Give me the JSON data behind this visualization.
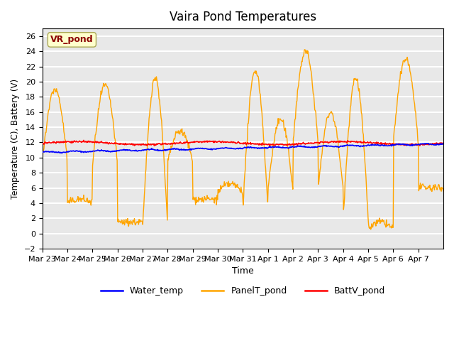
{
  "title": "Vaira Pond Temperatures",
  "xlabel": "Time",
  "ylabel": "Temperature (C), Battery (V)",
  "ylim": [
    -2,
    27
  ],
  "yticks": [
    -2,
    0,
    2,
    4,
    6,
    8,
    10,
    12,
    14,
    16,
    18,
    20,
    22,
    24,
    26
  ],
  "bg_color": "#e8e8e8",
  "grid_color": "white",
  "annotation_text": "VR_pond",
  "annotation_color": "#8b0000",
  "annotation_bg": "#ffffcc",
  "water_temp_color": "blue",
  "panel_temp_color": "orange",
  "batt_color": "red",
  "legend_labels": [
    "Water_temp",
    "PanelT_pond",
    "BattV_pond"
  ],
  "n_days": 16,
  "x_tick_labels": [
    "Mar 23",
    "Mar 24",
    "Mar 25",
    "Mar 26",
    "Mar 27",
    "Mar 28",
    "Mar 29",
    "Mar 30",
    "Mar 31",
    "Apr 1",
    "Apr 2",
    "Apr 3",
    "Apr 4",
    "Apr 5",
    "Apr 6",
    "Apr 7"
  ]
}
